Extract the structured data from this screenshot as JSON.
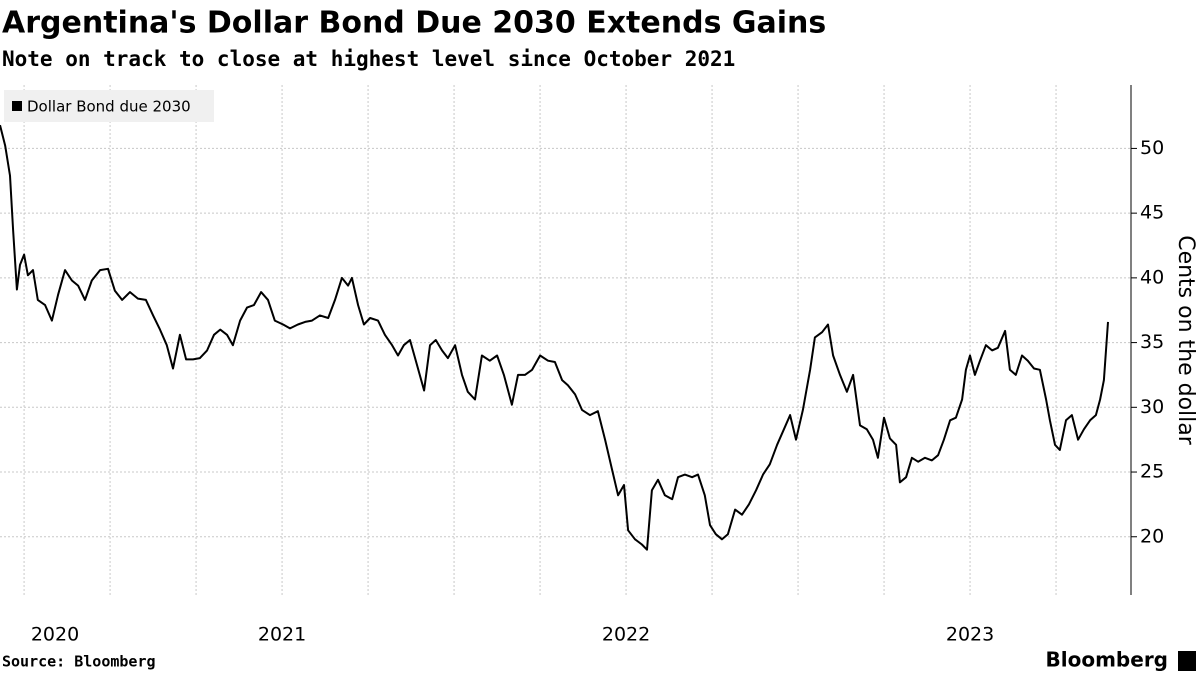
{
  "chart_data": {
    "type": "line",
    "title": "Argentina's Dollar Bond Due 2030 Extends Gains",
    "subtitle": "Note on track to close at highest level since October 2021",
    "y_axis_label": "Cents on the dollar",
    "source": "Source: Bloomberg",
    "brand": "Bloomberg",
    "legend": "top-left",
    "grid": true,
    "xlim": [
      2020.18,
      2023.465
    ],
    "xticks": [
      2020,
      2021,
      2022,
      2023
    ],
    "ylim": [
      15.5,
      54.9
    ],
    "yticks": [
      20,
      25,
      30,
      35,
      40,
      45,
      50
    ],
    "x": [
      2020.18,
      2020.195,
      2020.209,
      2020.218,
      2020.229,
      2020.238,
      2020.25,
      2020.261,
      2020.276,
      2020.29,
      2020.311,
      2020.331,
      2020.349,
      2020.369,
      2020.389,
      2020.407,
      2020.427,
      2020.447,
      2020.471,
      2020.494,
      2020.514,
      2020.535,
      2020.558,
      2020.581,
      2020.604,
      2020.625,
      2020.645,
      2020.665,
      2020.683,
      2020.703,
      2020.721,
      2020.741,
      2020.761,
      2020.782,
      2020.802,
      2020.82,
      2020.84,
      2020.857,
      2020.878,
      2020.898,
      2020.918,
      2020.939,
      2020.959,
      2020.979,
      2021.003,
      2021.023,
      2021.046,
      2021.067,
      2021.087,
      2021.11,
      2021.134,
      2021.154,
      2021.174,
      2021.192,
      2021.203,
      2021.221,
      2021.238,
      2021.256,
      2021.279,
      2021.299,
      2021.32,
      2021.337,
      2021.354,
      2021.372,
      2021.392,
      2021.413,
      2021.43,
      2021.447,
      2021.465,
      2021.482,
      2021.503,
      2021.523,
      2021.54,
      2021.561,
      2021.581,
      2021.604,
      2021.625,
      2021.645,
      2021.668,
      2021.686,
      2021.706,
      2021.727,
      2021.75,
      2021.773,
      2021.793,
      2021.814,
      2021.831,
      2021.852,
      2021.872,
      2021.895,
      2021.918,
      2021.939,
      2021.959,
      2021.977,
      2021.994,
      2022.006,
      2022.026,
      2022.046,
      2022.061,
      2022.075,
      2022.093,
      2022.113,
      2022.134,
      2022.151,
      2022.171,
      2022.192,
      2022.209,
      2022.229,
      2022.244,
      2022.261,
      2022.279,
      2022.296,
      2022.317,
      2022.337,
      2022.357,
      2022.378,
      2022.398,
      2022.418,
      2022.439,
      2022.459,
      2022.477,
      2022.494,
      2022.514,
      2022.535,
      2022.549,
      2022.57,
      2022.587,
      2022.602,
      2022.622,
      2022.642,
      2022.66,
      2022.68,
      2022.7,
      2022.718,
      2022.732,
      2022.75,
      2022.767,
      2022.785,
      2022.796,
      2022.814,
      2022.831,
      2022.849,
      2022.869,
      2022.889,
      2022.907,
      2022.924,
      2022.942,
      2022.959,
      2022.977,
      2022.988,
      2023.0,
      2023.014,
      2023.029,
      2023.046,
      2023.064,
      2023.081,
      2023.102,
      2023.116,
      2023.133,
      2023.151,
      2023.168,
      2023.186,
      2023.203,
      2023.221,
      2023.232,
      2023.247,
      2023.261,
      2023.279,
      2023.296,
      2023.314,
      2023.331,
      2023.349,
      2023.366,
      2023.378,
      2023.389,
      2023.401
    ],
    "series": [
      {
        "name": "Dollar Bond due 2030",
        "color": "#000000",
        "values": [
          51.8,
          50.2,
          47.9,
          43.7,
          39.1,
          41.0,
          41.8,
          40.2,
          40.6,
          38.3,
          37.9,
          36.7,
          38.7,
          40.6,
          39.8,
          39.4,
          38.3,
          39.8,
          40.6,
          40.7,
          39.0,
          38.3,
          38.9,
          38.4,
          38.3,
          37.1,
          36.0,
          34.8,
          33.0,
          35.6,
          33.7,
          33.7,
          33.8,
          34.4,
          35.6,
          36.0,
          35.6,
          34.8,
          36.7,
          37.7,
          37.9,
          38.9,
          38.3,
          36.7,
          36.4,
          36.1,
          36.4,
          36.6,
          36.7,
          37.1,
          36.9,
          38.3,
          40.0,
          39.4,
          40.0,
          37.9,
          36.4,
          36.9,
          36.7,
          35.6,
          34.8,
          34.0,
          34.8,
          35.2,
          33.3,
          31.3,
          34.8,
          35.2,
          34.4,
          33.8,
          34.8,
          32.5,
          31.2,
          30.6,
          34.0,
          33.6,
          34.0,
          32.5,
          30.2,
          32.5,
          32.5,
          32.9,
          34.0,
          33.6,
          33.5,
          32.1,
          31.7,
          31.0,
          29.8,
          29.4,
          29.7,
          27.5,
          25.2,
          23.2,
          24.0,
          20.5,
          19.8,
          19.4,
          19.0,
          23.6,
          24.4,
          23.2,
          22.9,
          24.6,
          24.8,
          24.6,
          24.8,
          23.2,
          20.9,
          20.2,
          19.8,
          20.2,
          22.1,
          21.7,
          22.5,
          23.6,
          24.8,
          25.6,
          27.1,
          28.3,
          29.4,
          27.5,
          29.8,
          32.9,
          35.4,
          35.8,
          36.4,
          34.0,
          32.5,
          31.2,
          32.5,
          28.6,
          28.3,
          27.5,
          26.1,
          29.2,
          27.6,
          27.1,
          24.2,
          24.6,
          26.1,
          25.8,
          26.1,
          25.9,
          26.3,
          27.5,
          29.0,
          29.2,
          30.6,
          32.9,
          34.0,
          32.5,
          33.6,
          34.8,
          34.4,
          34.6,
          35.9,
          32.9,
          32.5,
          34.0,
          33.6,
          33.0,
          32.9,
          30.6,
          29.0,
          27.1,
          26.7,
          29.0,
          29.4,
          27.5,
          28.3,
          29.0,
          29.4,
          30.6,
          32.1,
          36.6
        ]
      }
    ]
  }
}
